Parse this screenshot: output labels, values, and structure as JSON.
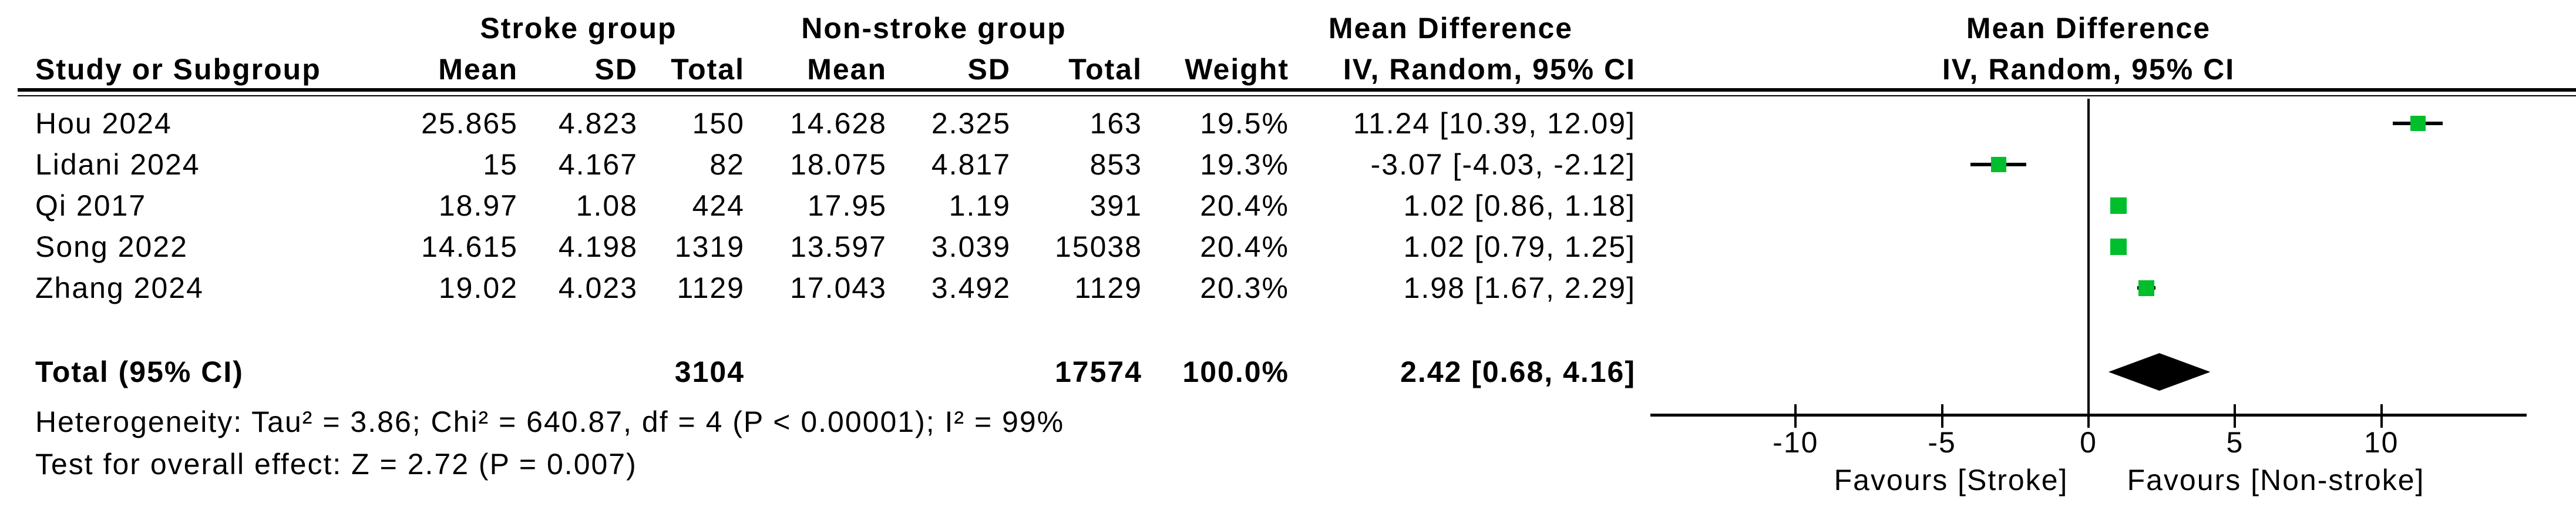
{
  "colors": {
    "marker_green": "#00be2c",
    "line_black": "#000000",
    "background": "#ffffff"
  },
  "table": {
    "group_headers": {
      "stroke": "Stroke group",
      "nonstroke": "Non-stroke group",
      "md_text": "Mean Difference",
      "md_plot": "Mean Difference"
    },
    "sub_headers": {
      "study": "Study or Subgroup",
      "mean1": "Mean",
      "sd1": "SD",
      "total1": "Total",
      "mean2": "Mean",
      "sd2": "SD",
      "total2": "Total",
      "weight": "Weight",
      "ci_text": "IV, Random, 95% CI",
      "ci_plot": "IV, Random, 95% CI"
    },
    "rows": [
      {
        "study": "Hou 2024",
        "mean1": "25.865",
        "sd1": "4.823",
        "total1": "150",
        "mean2": "14.628",
        "sd2": "2.325",
        "total2": "163",
        "weight": "19.5%",
        "ci": "11.24 [10.39, 12.09]"
      },
      {
        "study": "Lidani 2024",
        "mean1": "15",
        "sd1": "4.167",
        "total1": "82",
        "mean2": "18.075",
        "sd2": "4.817",
        "total2": "853",
        "weight": "19.3%",
        "ci": "-3.07 [-4.03, -2.12]"
      },
      {
        "study": "Qi 2017",
        "mean1": "18.97",
        "sd1": "1.08",
        "total1": "424",
        "mean2": "17.95",
        "sd2": "1.19",
        "total2": "391",
        "weight": "20.4%",
        "ci": "1.02 [0.86, 1.18]"
      },
      {
        "study": "Song 2022",
        "mean1": "14.615",
        "sd1": "4.198",
        "total1": "1319",
        "mean2": "13.597",
        "sd2": "3.039",
        "total2": "15038",
        "weight": "20.4%",
        "ci": "1.02 [0.79, 1.25]"
      },
      {
        "study": "Zhang 2024",
        "mean1": "19.02",
        "sd1": "4.023",
        "total1": "1129",
        "mean2": "17.043",
        "sd2": "3.492",
        "total2": "1129",
        "weight": "20.3%",
        "ci": "1.98 [1.67, 2.29]"
      }
    ],
    "total_row": {
      "label": "Total (95% CI)",
      "total1": "3104",
      "total2": "17574",
      "weight": "100.0%",
      "ci": "2.42 [0.68, 4.16]"
    },
    "footnotes": {
      "heterogeneity": "Heterogeneity: Tau² = 3.86; Chi² = 640.87, df = 4 (P < 0.00001); I² = 99%",
      "overall_effect": "Test for overall effect: Z = 2.72 (P = 0.007)"
    }
  },
  "chart_data": {
    "type": "scatter",
    "variant": "forest-plot-mean-difference",
    "title": "Mean Difference",
    "subtitle": "IV, Random, 95% CI",
    "effect_model": "IV, Random, 95% CI",
    "x_axis": {
      "ticks": [
        -10,
        -5,
        0,
        5,
        10
      ],
      "range": [
        -15,
        15
      ],
      "zero_line": 0,
      "favours_left": "Favours [Stroke]",
      "favours_right": "Favours [Non-stroke]"
    },
    "studies": [
      {
        "name": "Hou 2024",
        "md": 11.24,
        "ci_low": 10.39,
        "ci_high": 12.09,
        "weight_pct": 19.5
      },
      {
        "name": "Lidani 2024",
        "md": -3.07,
        "ci_low": -4.03,
        "ci_high": -2.12,
        "weight_pct": 19.3
      },
      {
        "name": "Qi 2017",
        "md": 1.02,
        "ci_low": 0.86,
        "ci_high": 1.18,
        "weight_pct": 20.4
      },
      {
        "name": "Song 2022",
        "md": 1.02,
        "ci_low": 0.79,
        "ci_high": 1.25,
        "weight_pct": 20.4
      },
      {
        "name": "Zhang 2024",
        "md": 1.98,
        "ci_low": 1.67,
        "ci_high": 2.29,
        "weight_pct": 20.3
      }
    ],
    "total": {
      "name": "Total (95% CI)",
      "md": 2.42,
      "ci_low": 0.68,
      "ci_high": 4.16,
      "weight_pct": 100.0
    }
  }
}
